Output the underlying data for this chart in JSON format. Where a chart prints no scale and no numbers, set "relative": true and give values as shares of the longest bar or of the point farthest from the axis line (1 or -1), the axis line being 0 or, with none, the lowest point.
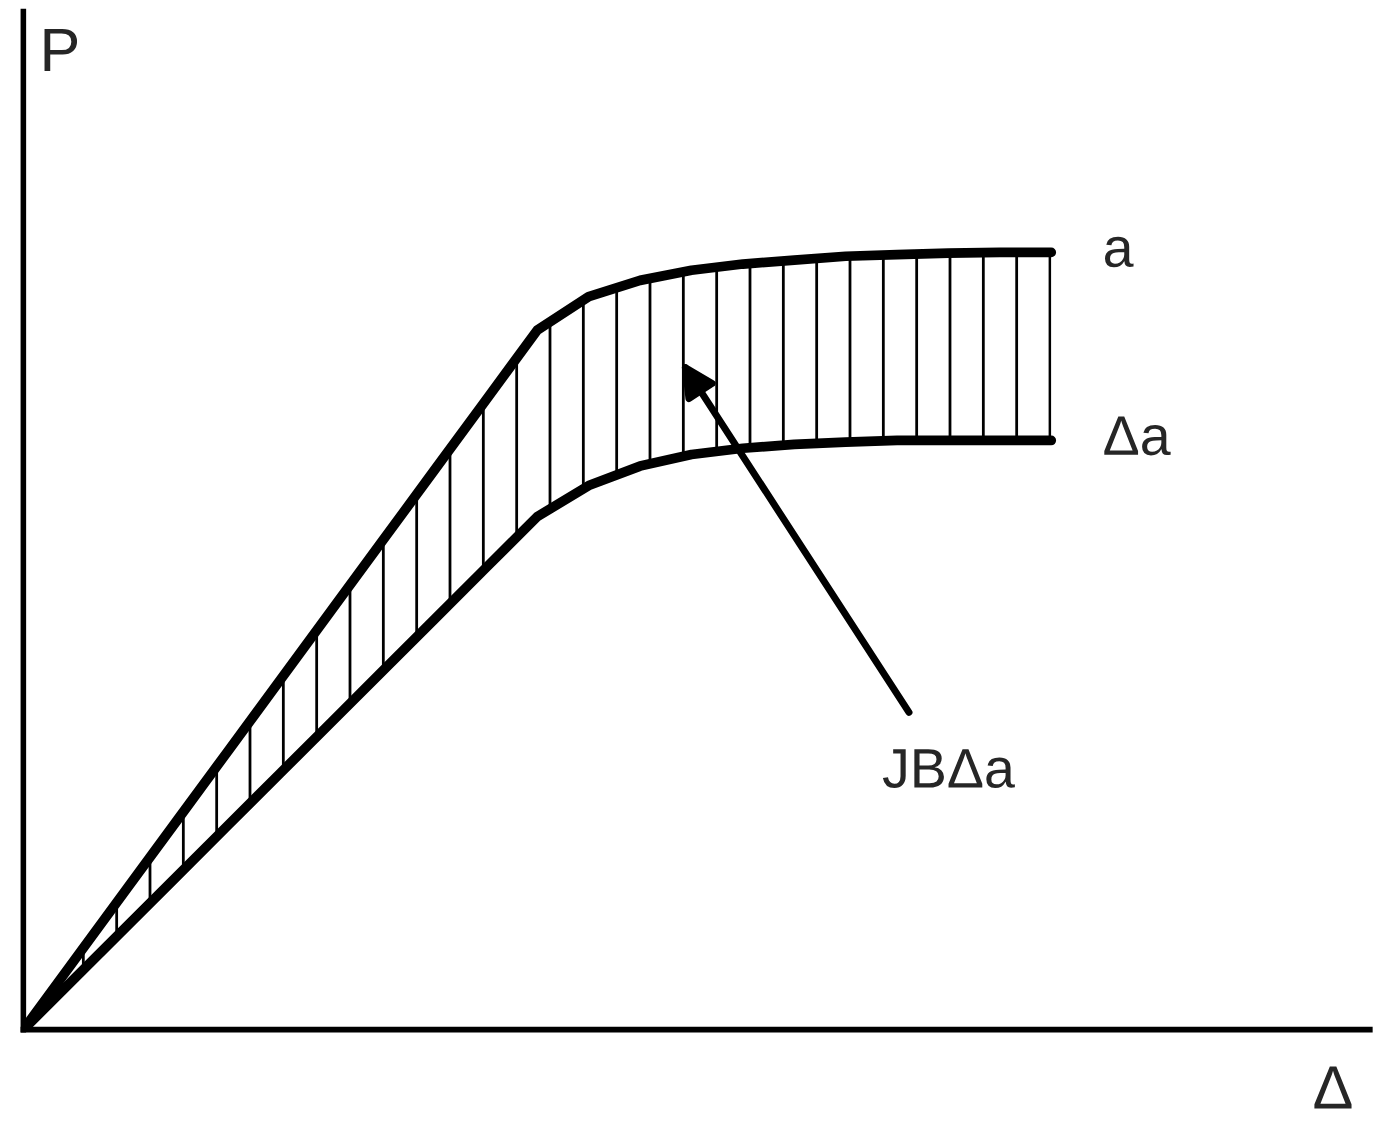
{
  "chart_data": {
    "type": "line",
    "relative": true,
    "xlabel": "Δ",
    "ylabel": "P",
    "categories": [
      null,
      null,
      null,
      null,
      null,
      null,
      null,
      null,
      null,
      null,
      null,
      null,
      null,
      null,
      null,
      null,
      null,
      null,
      null,
      null,
      null
    ],
    "series": [
      {
        "name": "a",
        "color": "#000000",
        "values": [
          0,
          0.09,
          0.18,
          0.27,
          0.36,
          0.45,
          0.54,
          0.63,
          0.72,
          0.81,
          0.9,
          0.943,
          0.964,
          0.977,
          0.985,
          0.99,
          0.995,
          0.997,
          0.999,
          1,
          1
        ]
      },
      {
        "name": "Δa",
        "color": "#000000",
        "values": [
          0,
          0.066,
          0.132,
          0.198,
          0.264,
          0.33,
          0.396,
          0.462,
          0.528,
          0.594,
          0.66,
          0.7,
          0.725,
          0.74,
          0.748,
          0.753,
          0.756,
          0.758,
          0.758,
          0.758,
          0.758
        ],
        "lower": [
          0,
          0.066,
          0.132,
          0.198,
          0.264,
          0.33,
          0.396,
          0.462,
          0.528,
          0.594,
          0.66,
          0.7,
          0.725,
          0.74,
          0.748,
          0.753,
          0.756,
          0.758,
          0.758,
          0.758,
          0.758
        ],
        "upper": [
          0,
          0.09,
          0.18,
          0.27,
          0.36,
          0.45,
          0.54,
          0.63,
          0.72,
          0.81,
          0.9,
          0.943,
          0.964,
          0.977,
          0.985,
          0.99,
          0.995,
          0.997,
          0.999,
          1,
          1
        ]
      }
    ],
    "annotations": [
      "JBΔa"
    ]
  }
}
